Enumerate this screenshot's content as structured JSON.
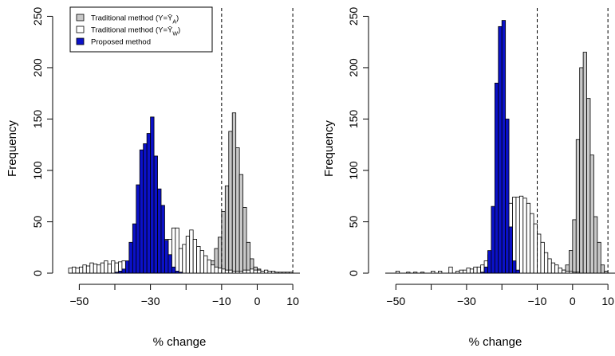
{
  "figure": {
    "panels": 2
  },
  "chart_data": [
    {
      "type": "bar",
      "subtype": "histogram",
      "xlabel": "% change",
      "ylabel": "Frequency",
      "xlim": [
        -53,
        12
      ],
      "ylim": [
        0,
        255
      ],
      "xticks": [
        -50,
        -30,
        -10,
        0,
        10
      ],
      "xtick_labels": [
        "−50",
        "−30",
        "−10",
        "0",
        "10"
      ],
      "xminor_ticks": [
        -40,
        -20
      ],
      "yticks": [
        0,
        50,
        100,
        150,
        200,
        250
      ],
      "ytick_labels": [
        "0",
        "50",
        "100",
        "150",
        "200",
        "250"
      ],
      "reference_lines": [
        -10,
        10
      ],
      "reference_line_style": "dashed",
      "grid": false,
      "bin_width": 1,
      "legend": {
        "position": "top-left",
        "entries": [
          {
            "label": "Traditional method (Y=Ȳ",
            "subscript": "A",
            "suffix": ")",
            "color": "#c8c8c8"
          },
          {
            "label": "Traditional method (Y=Ȳ",
            "subscript": "W",
            "suffix": ")",
            "color": "#ffffff"
          },
          {
            "label": "Proposed method",
            "subscript": "",
            "suffix": "",
            "color": "#0b11c8"
          }
        ]
      },
      "series": [
        {
          "name": "Traditional method (Y=ȲA)",
          "color": "#c8c8c8",
          "bins": [
            {
              "x0": -16,
              "count": 1
            },
            {
              "x0": -15,
              "count": 3
            },
            {
              "x0": -14,
              "count": 6
            },
            {
              "x0": -13,
              "count": 12
            },
            {
              "x0": -12,
              "count": 24
            },
            {
              "x0": -11,
              "count": 35
            },
            {
              "x0": -10,
              "count": 60
            },
            {
              "x0": -9,
              "count": 85
            },
            {
              "x0": -8,
              "count": 138
            },
            {
              "x0": -7,
              "count": 156
            },
            {
              "x0": -6,
              "count": 122
            },
            {
              "x0": -5,
              "count": 96
            },
            {
              "x0": -4,
              "count": 64
            },
            {
              "x0": -3,
              "count": 30
            },
            {
              "x0": -2,
              "count": 14
            },
            {
              "x0": -1,
              "count": 6
            },
            {
              "x0": 0,
              "count": 4
            },
            {
              "x0": 1,
              "count": 2
            },
            {
              "x0": 2,
              "count": 1
            },
            {
              "x0": 3,
              "count": 1
            }
          ]
        },
        {
          "name": "Traditional method (Y=ȲW)",
          "color": "#ffffff",
          "bins": [
            {
              "x0": -53,
              "count": 5
            },
            {
              "x0": -52,
              "count": 6
            },
            {
              "x0": -51,
              "count": 5
            },
            {
              "x0": -50,
              "count": 6
            },
            {
              "x0": -49,
              "count": 8
            },
            {
              "x0": -48,
              "count": 7
            },
            {
              "x0": -47,
              "count": 10
            },
            {
              "x0": -46,
              "count": 9
            },
            {
              "x0": -45,
              "count": 8
            },
            {
              "x0": -44,
              "count": 10
            },
            {
              "x0": -43,
              "count": 12
            },
            {
              "x0": -42,
              "count": 9
            },
            {
              "x0": -41,
              "count": 12
            },
            {
              "x0": -40,
              "count": 10
            },
            {
              "x0": -39,
              "count": 11
            },
            {
              "x0": -38,
              "count": 12
            },
            {
              "x0": -37,
              "count": 11
            },
            {
              "x0": -36,
              "count": 8
            },
            {
              "x0": -35,
              "count": 7
            },
            {
              "x0": -34,
              "count": 9
            },
            {
              "x0": -33,
              "count": 6
            },
            {
              "x0": -32,
              "count": 8
            },
            {
              "x0": -31,
              "count": 10
            },
            {
              "x0": -30,
              "count": 13
            },
            {
              "x0": -29,
              "count": 16
            },
            {
              "x0": -28,
              "count": 22
            },
            {
              "x0": -27,
              "count": 28
            },
            {
              "x0": -26,
              "count": 33
            },
            {
              "x0": -25,
              "count": 33
            },
            {
              "x0": -24,
              "count": 44
            },
            {
              "x0": -23,
              "count": 44
            },
            {
              "x0": -22,
              "count": 24
            },
            {
              "x0": -21,
              "count": 28
            },
            {
              "x0": -20,
              "count": 36
            },
            {
              "x0": -19,
              "count": 42
            },
            {
              "x0": -18,
              "count": 33
            },
            {
              "x0": -17,
              "count": 26
            },
            {
              "x0": -16,
              "count": 22
            },
            {
              "x0": -15,
              "count": 17
            },
            {
              "x0": -14,
              "count": 13
            },
            {
              "x0": -13,
              "count": 8
            },
            {
              "x0": -12,
              "count": 6
            },
            {
              "x0": -11,
              "count": 5
            },
            {
              "x0": -10,
              "count": 4
            },
            {
              "x0": -9,
              "count": 3
            },
            {
              "x0": -8,
              "count": 3
            },
            {
              "x0": -7,
              "count": 2
            },
            {
              "x0": -6,
              "count": 2
            },
            {
              "x0": -5,
              "count": 2
            },
            {
              "x0": -4,
              "count": 3
            },
            {
              "x0": -3,
              "count": 3
            },
            {
              "x0": -2,
              "count": 4
            },
            {
              "x0": -1,
              "count": 3
            },
            {
              "x0": 0,
              "count": 3
            },
            {
              "x0": 1,
              "count": 2
            },
            {
              "x0": 2,
              "count": 3
            },
            {
              "x0": 3,
              "count": 2
            },
            {
              "x0": 4,
              "count": 2
            },
            {
              "x0": 5,
              "count": 1
            },
            {
              "x0": 6,
              "count": 1
            },
            {
              "x0": 7,
              "count": 1
            },
            {
              "x0": 8,
              "count": 1
            },
            {
              "x0": 9,
              "count": 1
            }
          ]
        },
        {
          "name": "Proposed method",
          "color": "#0b11c8",
          "bins": [
            {
              "x0": -40,
              "count": 1
            },
            {
              "x0": -39,
              "count": 2
            },
            {
              "x0": -38,
              "count": 4
            },
            {
              "x0": -37,
              "count": 12
            },
            {
              "x0": -36,
              "count": 30
            },
            {
              "x0": -35,
              "count": 48
            },
            {
              "x0": -34,
              "count": 86
            },
            {
              "x0": -33,
              "count": 120
            },
            {
              "x0": -32,
              "count": 126
            },
            {
              "x0": -31,
              "count": 136
            },
            {
              "x0": -30,
              "count": 152
            },
            {
              "x0": -29,
              "count": 114
            },
            {
              "x0": -28,
              "count": 82
            },
            {
              "x0": -27,
              "count": 66
            },
            {
              "x0": -26,
              "count": 32
            },
            {
              "x0": -25,
              "count": 18
            },
            {
              "x0": -24,
              "count": 6
            },
            {
              "x0": -23,
              "count": 2
            },
            {
              "x0": -22,
              "count": 1
            }
          ]
        }
      ]
    },
    {
      "type": "bar",
      "subtype": "histogram",
      "xlabel": "% change",
      "ylabel": "Frequency",
      "xlim": [
        -53,
        12
      ],
      "ylim": [
        0,
        255
      ],
      "xticks": [
        -50,
        -30,
        -10,
        0,
        10
      ],
      "xtick_labels": [
        "−50",
        "−30",
        "−10",
        "0",
        "10"
      ],
      "xminor_ticks": [
        -40,
        -20
      ],
      "yticks": [
        0,
        50,
        100,
        150,
        200,
        250
      ],
      "ytick_labels": [
        "0",
        "50",
        "100",
        "150",
        "200",
        "250"
      ],
      "reference_lines": [
        -10,
        10
      ],
      "reference_line_style": "dashed",
      "grid": false,
      "bin_width": 1,
      "series": [
        {
          "name": "Traditional method (Y=ȲA)",
          "color": "#c8c8c8",
          "bins": [
            {
              "x0": -4,
              "count": 1
            },
            {
              "x0": -3,
              "count": 3
            },
            {
              "x0": -2,
              "count": 8
            },
            {
              "x0": -1,
              "count": 22
            },
            {
              "x0": 0,
              "count": 52
            },
            {
              "x0": 1,
              "count": 130
            },
            {
              "x0": 2,
              "count": 200
            },
            {
              "x0": 3,
              "count": 215
            },
            {
              "x0": 4,
              "count": 170
            },
            {
              "x0": 5,
              "count": 115
            },
            {
              "x0": 6,
              "count": 55
            },
            {
              "x0": 7,
              "count": 30
            },
            {
              "x0": 8,
              "count": 8
            },
            {
              "x0": 9,
              "count": 2
            }
          ]
        },
        {
          "name": "Traditional method (Y=ȲW)",
          "color": "#ffffff",
          "bins": [
            {
              "x0": -50,
              "count": 2
            },
            {
              "x0": -47,
              "count": 1
            },
            {
              "x0": -45,
              "count": 1
            },
            {
              "x0": -43,
              "count": 1
            },
            {
              "x0": -40,
              "count": 2
            },
            {
              "x0": -38,
              "count": 2
            },
            {
              "x0": -35,
              "count": 6
            },
            {
              "x0": -33,
              "count": 2
            },
            {
              "x0": -32,
              "count": 3
            },
            {
              "x0": -31,
              "count": 3
            },
            {
              "x0": -30,
              "count": 5
            },
            {
              "x0": -29,
              "count": 4
            },
            {
              "x0": -28,
              "count": 6
            },
            {
              "x0": -27,
              "count": 6
            },
            {
              "x0": -26,
              "count": 8
            },
            {
              "x0": -25,
              "count": 12
            },
            {
              "x0": -24,
              "count": 18
            },
            {
              "x0": -23,
              "count": 26
            },
            {
              "x0": -22,
              "count": 34
            },
            {
              "x0": -21,
              "count": 46
            },
            {
              "x0": -20,
              "count": 55
            },
            {
              "x0": -19,
              "count": 62
            },
            {
              "x0": -18,
              "count": 68
            },
            {
              "x0": -17,
              "count": 74
            },
            {
              "x0": -16,
              "count": 74
            },
            {
              "x0": -15,
              "count": 75
            },
            {
              "x0": -14,
              "count": 73
            },
            {
              "x0": -13,
              "count": 68
            },
            {
              "x0": -12,
              "count": 58
            },
            {
              "x0": -11,
              "count": 48
            },
            {
              "x0": -10,
              "count": 38
            },
            {
              "x0": -9,
              "count": 30
            },
            {
              "x0": -8,
              "count": 20
            },
            {
              "x0": -7,
              "count": 14
            },
            {
              "x0": -6,
              "count": 10
            },
            {
              "x0": -5,
              "count": 8
            },
            {
              "x0": -4,
              "count": 5
            },
            {
              "x0": -3,
              "count": 3
            },
            {
              "x0": -2,
              "count": 2
            },
            {
              "x0": -1,
              "count": 2
            },
            {
              "x0": 0,
              "count": 1
            },
            {
              "x0": 1,
              "count": 1
            }
          ]
        },
        {
          "name": "Proposed method",
          "color": "#0b11c8",
          "bins": [
            {
              "x0": -26,
              "count": 1
            },
            {
              "x0": -25,
              "count": 6
            },
            {
              "x0": -24,
              "count": 22
            },
            {
              "x0": -23,
              "count": 65
            },
            {
              "x0": -22,
              "count": 185
            },
            {
              "x0": -21,
              "count": 240
            },
            {
              "x0": -20,
              "count": 246
            },
            {
              "x0": -19,
              "count": 150
            },
            {
              "x0": -18,
              "count": 45
            },
            {
              "x0": -17,
              "count": 12
            },
            {
              "x0": -16,
              "count": 3
            }
          ]
        }
      ]
    }
  ]
}
